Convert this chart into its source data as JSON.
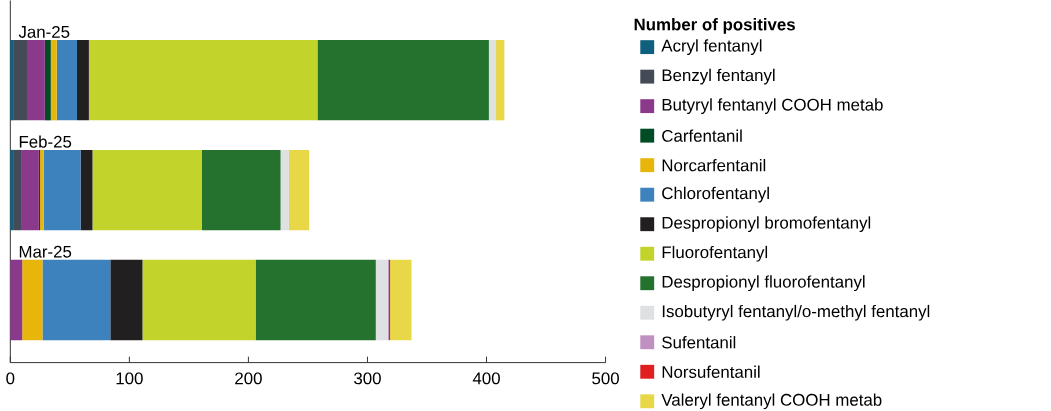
{
  "chart_data": {
    "type": "bar",
    "orientation": "horizontal",
    "stacked": true,
    "legend_title": "Number of positives",
    "legend": "right",
    "categories": [
      "Jan-25",
      "Feb-25",
      "Mar-25"
    ],
    "xlim": [
      0,
      500
    ],
    "xticks": [
      0,
      100,
      200,
      300,
      400,
      500
    ],
    "series": [
      {
        "name": "Acryl fentanyl",
        "color": "#0f5f7f",
        "values": [
          3,
          3,
          0
        ]
      },
      {
        "name": "Benzyl fentanyl",
        "color": "#454b56",
        "values": [
          11,
          6,
          null
        ]
      },
      {
        "name": "Butyryl fentanyl COOH metab",
        "color": "#8b3a8b",
        "values": [
          15,
          15,
          10
        ]
      },
      {
        "name": "Carfentanil",
        "color": "#004d25",
        "values": [
          5,
          1,
          0
        ]
      },
      {
        "name": "Norcarfentanil",
        "color": "#e8b60a",
        "values": [
          5,
          3,
          17
        ]
      },
      {
        "name": "Chlorofentanyl",
        "color": "#3d82bc",
        "values": [
          17,
          31,
          57
        ]
      },
      {
        "name": "Despropionyl bromofentanyl",
        "color": "#221f20",
        "values": [
          10,
          10,
          27
        ]
      },
      {
        "name": "Fluorofentanyl",
        "color": "#c2d32b",
        "values": [
          192,
          92,
          95
        ]
      },
      {
        "name": "Despropionyl fluorofentanyl",
        "color": "#24722e",
        "values": [
          144,
          66,
          101
        ]
      },
      {
        "name": "Isobutyryl fentanyl/o-methyl fentanyl",
        "color": "#dfe0e2",
        "values": [
          6,
          7,
          10
        ]
      },
      {
        "name": "Sufentanil",
        "color": "#c090c0",
        "values": [
          0,
          0,
          1
        ]
      },
      {
        "name": "Norsufentanil",
        "color": "#e02020",
        "values": [
          0,
          0,
          1
        ]
      },
      {
        "name": "Valeryl fentanyl COOH metab",
        "color": "#e8d747",
        "values": [
          7,
          17,
          18
        ]
      }
    ]
  }
}
